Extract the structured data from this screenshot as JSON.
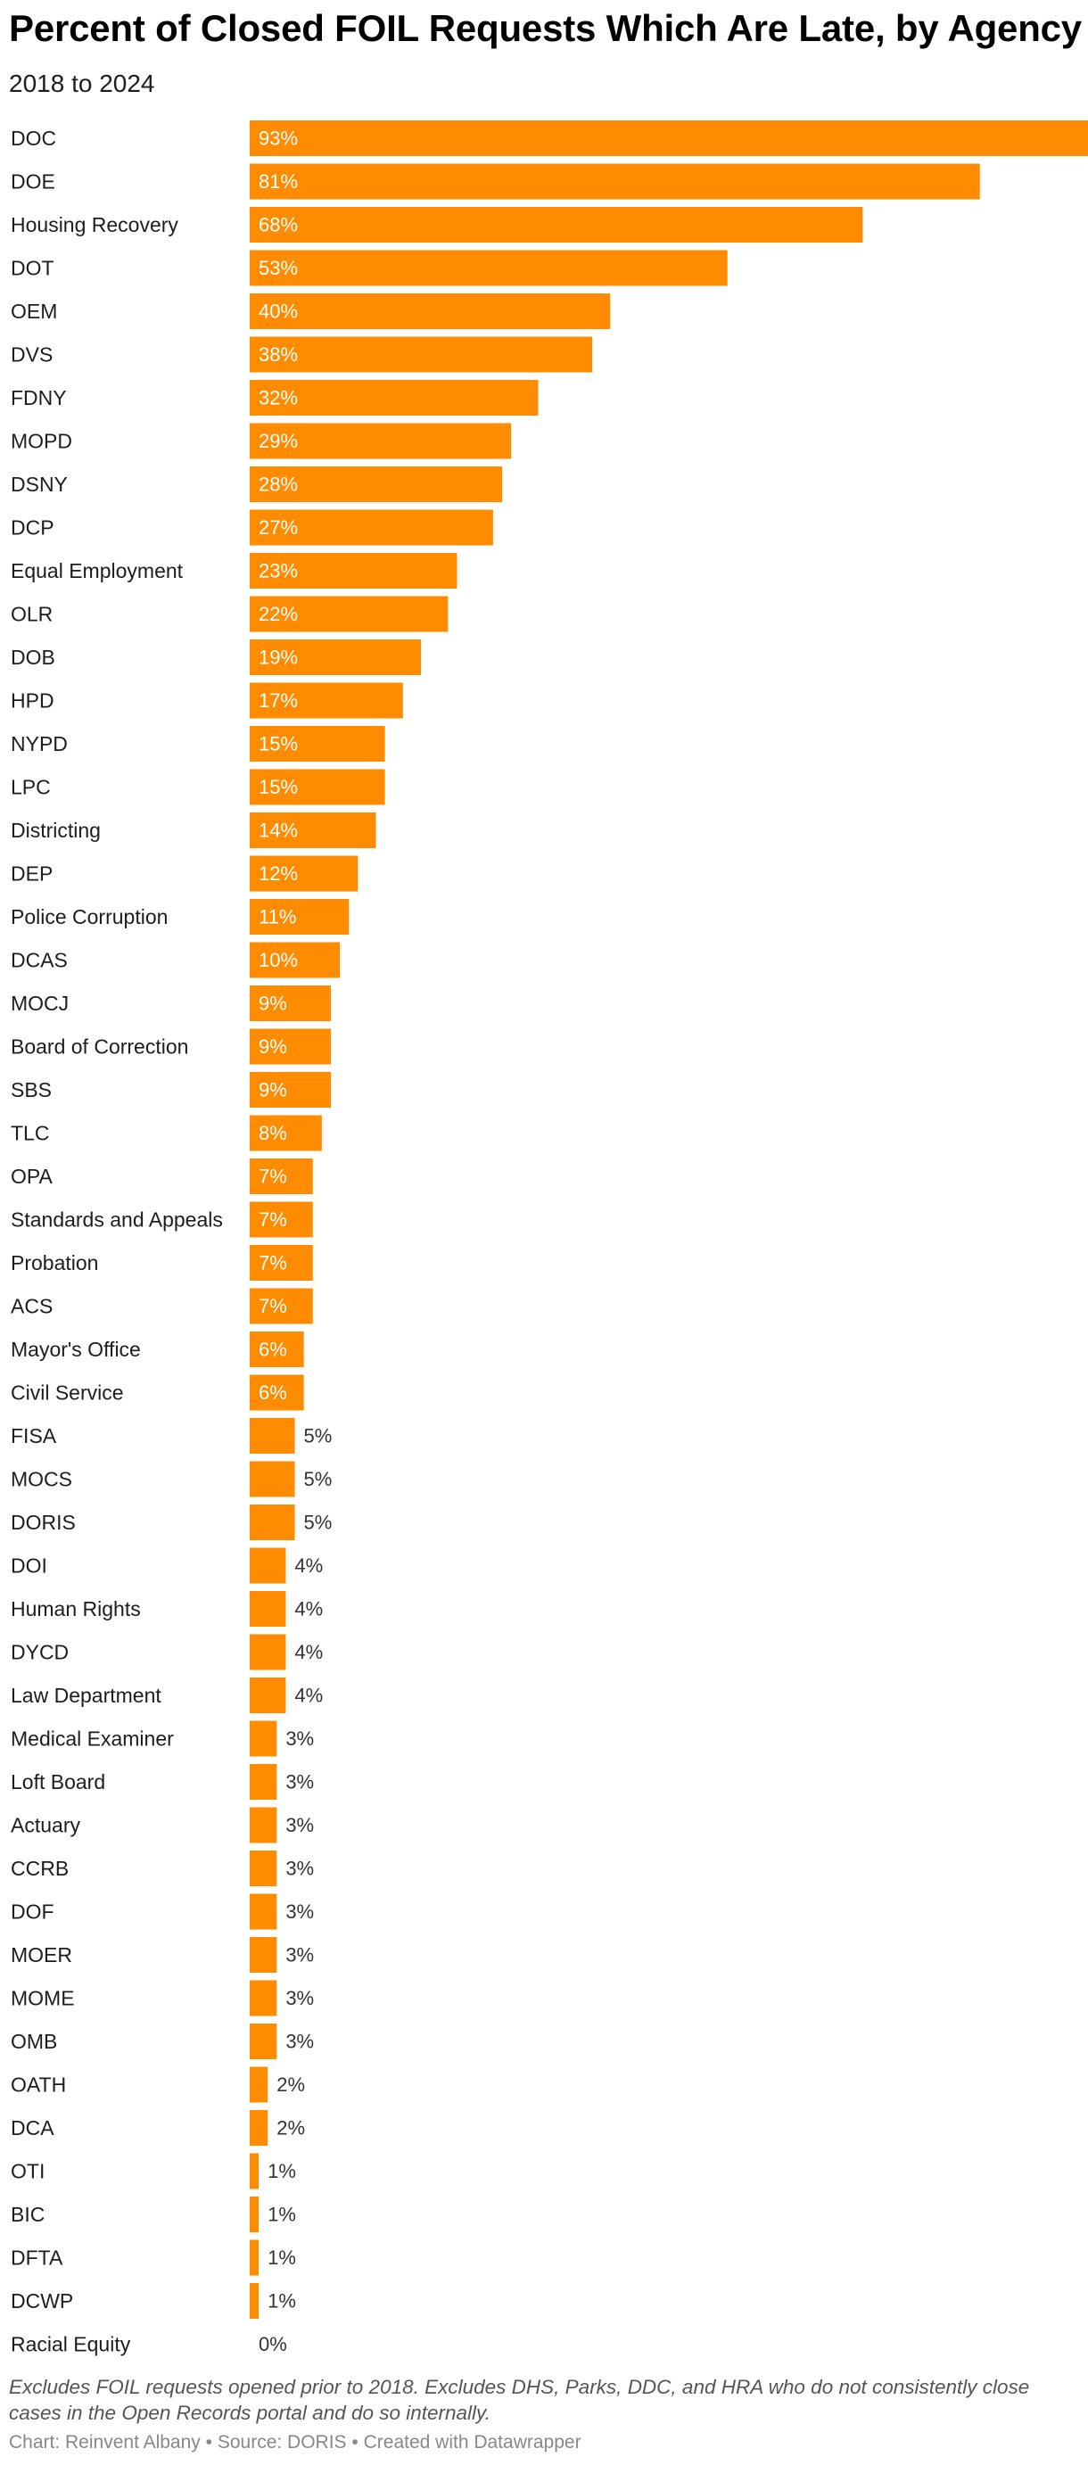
{
  "title": "Percent of Closed FOIL Requests Which Are Late, by Agency",
  "subtitle": "2018 to 2024",
  "notes": "Excludes FOIL requests opened prior to 2018. Excludes DHS, Parks, DDC, and HRA who do not consistently close cases in the Open Records portal and do so internally.",
  "footer": {
    "chart_credit": "Chart: Reinvent Albany",
    "separator": "•",
    "source": "Source: DORIS",
    "tool": "Created with Datawrapper"
  },
  "colors": {
    "bar": "#FF8C00",
    "label_inside": "#ffffff",
    "label_outside": "#333333"
  },
  "chart_data": {
    "type": "bar",
    "orientation": "horizontal",
    "value_suffix": "%",
    "xlim": [
      0,
      93
    ],
    "categories": [
      "DOC",
      "DOE",
      "Housing Recovery",
      "DOT",
      "OEM",
      "DVS",
      "FDNY",
      "MOPD",
      "DSNY",
      "DCP",
      "Equal Employment",
      "OLR",
      "DOB",
      "HPD",
      "NYPD",
      "LPC",
      "Districting",
      "DEP",
      "Police Corruption",
      "DCAS",
      "MOCJ",
      "Board of Correction",
      "SBS",
      "TLC",
      "OPA",
      "Standards and Appeals",
      "Probation",
      "ACS",
      "Mayor's Office",
      "Civil Service",
      "FISA",
      "MOCS",
      "DORIS",
      "DOI",
      "Human Rights",
      "DYCD",
      "Law Department",
      "Medical Examiner",
      "Loft Board",
      "Actuary",
      "CCRB",
      "DOF",
      "MOER",
      "MOME",
      "OMB",
      "OATH",
      "DCA",
      "OTI",
      "BIC",
      "DFTA",
      "DCWP",
      "Racial Equity"
    ],
    "values": [
      93,
      81,
      68,
      53,
      40,
      38,
      32,
      29,
      28,
      27,
      23,
      22,
      19,
      17,
      15,
      15,
      14,
      12,
      11,
      10,
      9,
      9,
      9,
      8,
      7,
      7,
      7,
      7,
      6,
      6,
      5,
      5,
      5,
      4,
      4,
      4,
      4,
      3,
      3,
      3,
      3,
      3,
      3,
      3,
      3,
      2,
      2,
      1,
      1,
      1,
      1,
      0
    ]
  }
}
